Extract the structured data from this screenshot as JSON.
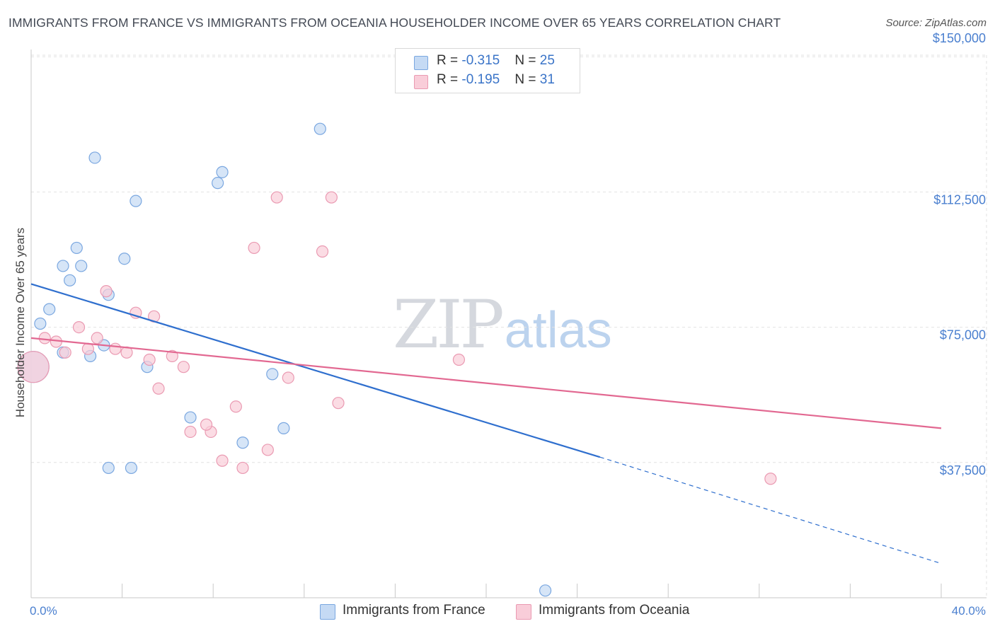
{
  "header": {
    "title": "IMMIGRANTS FROM FRANCE VS IMMIGRANTS FROM OCEANIA HOUSEHOLDER INCOME OVER 65 YEARS CORRELATION CHART",
    "source": "Source: ZipAtlas.com"
  },
  "watermark": {
    "zip": "ZIP",
    "atlas": "atlas"
  },
  "stats": {
    "france": {
      "r_label": "R = ",
      "r_value": "-0.315",
      "n_label": "N = ",
      "n_value": "25"
    },
    "oceania": {
      "r_label": "R = ",
      "r_value": "-0.195",
      "n_label": "N = ",
      "n_value": "31"
    }
  },
  "colors": {
    "france_fill": "#c5daf4",
    "france_stroke": "#7aa7e0",
    "france_line": "#2f6fce",
    "oceania_fill": "#f9cdd9",
    "oceania_stroke": "#ea9ab2",
    "oceania_line": "#e26891",
    "tick_text": "#4a7fcf",
    "grid": "#e2e2e2"
  },
  "chart_data": {
    "type": "scatter",
    "title": "IMMIGRANTS FROM FRANCE VS IMMIGRANTS FROM OCEANIA HOUSEHOLDER INCOME OVER 65 YEARS CORRELATION CHART",
    "xlabel": "",
    "ylabel": "Householder Income Over 65 years",
    "xlim": [
      0,
      40
    ],
    "ylim": [
      0,
      152000
    ],
    "x_tick_labels": [
      {
        "value": 0,
        "label": "0.0%"
      },
      {
        "value": 40,
        "label": "40.0%"
      }
    ],
    "y_ticks": [
      {
        "value": 37500,
        "label": "$37,500"
      },
      {
        "value": 75000,
        "label": "$75,000"
      },
      {
        "value": 112500,
        "label": "$112,500"
      },
      {
        "value": 150000,
        "label": "$150,000"
      }
    ],
    "grid": true,
    "series": [
      {
        "name": "Immigrants from France",
        "key": "france",
        "r": -0.315,
        "n": 25,
        "points": [
          [
            0.4,
            76000
          ],
          [
            0.8,
            80000
          ],
          [
            1.4,
            92000
          ],
          [
            1.7,
            88000
          ],
          [
            2.0,
            97000
          ],
          [
            2.2,
            92000
          ],
          [
            2.8,
            122000
          ],
          [
            3.4,
            84000
          ],
          [
            3.2,
            70000
          ],
          [
            4.1,
            94000
          ],
          [
            2.6,
            67000
          ],
          [
            1.4,
            68000
          ],
          [
            4.6,
            110000
          ],
          [
            5.1,
            64000
          ],
          [
            7.0,
            50000
          ],
          [
            8.2,
            115000
          ],
          [
            8.4,
            118000
          ],
          [
            9.3,
            43000
          ],
          [
            10.6,
            62000
          ],
          [
            11.1,
            47000
          ],
          [
            12.7,
            130000
          ],
          [
            3.4,
            36000
          ],
          [
            4.4,
            36000
          ],
          [
            22.6,
            2000
          ],
          [
            0.1,
            64000
          ]
        ],
        "trend": {
          "x0": 0,
          "y0": 87000,
          "x1": 25,
          "y1": 39000,
          "dashed_to_x": 40,
          "dashed_to_y": 9500
        }
      },
      {
        "name": "Immigrants from Oceania",
        "key": "oceania",
        "r": -0.195,
        "n": 31,
        "points": [
          [
            0.6,
            72000
          ],
          [
            1.1,
            71000
          ],
          [
            1.5,
            68000
          ],
          [
            2.1,
            75000
          ],
          [
            2.5,
            69000
          ],
          [
            2.9,
            72000
          ],
          [
            3.3,
            85000
          ],
          [
            3.7,
            69000
          ],
          [
            4.2,
            68000
          ],
          [
            4.6,
            79000
          ],
          [
            5.2,
            66000
          ],
          [
            5.4,
            78000
          ],
          [
            5.6,
            58000
          ],
          [
            6.2,
            67000
          ],
          [
            6.7,
            64000
          ],
          [
            7.0,
            46000
          ],
          [
            7.9,
            46000
          ],
          [
            7.7,
            48000
          ],
          [
            8.4,
            38000
          ],
          [
            9.0,
            53000
          ],
          [
            9.3,
            36000
          ],
          [
            9.8,
            97000
          ],
          [
            10.4,
            41000
          ],
          [
            10.8,
            111000
          ],
          [
            11.3,
            61000
          ],
          [
            12.8,
            96000
          ],
          [
            13.2,
            111000
          ],
          [
            13.5,
            54000
          ],
          [
            18.8,
            66000
          ],
          [
            32.5,
            33000
          ],
          [
            0.1,
            64000
          ]
        ],
        "trend": {
          "x0": 0,
          "y0": 72000,
          "x1": 40,
          "y1": 47000
        }
      }
    ],
    "legend": {
      "position": "bottom"
    }
  },
  "legend": {
    "france": "Immigrants from France",
    "oceania": "Immigrants from Oceania"
  }
}
